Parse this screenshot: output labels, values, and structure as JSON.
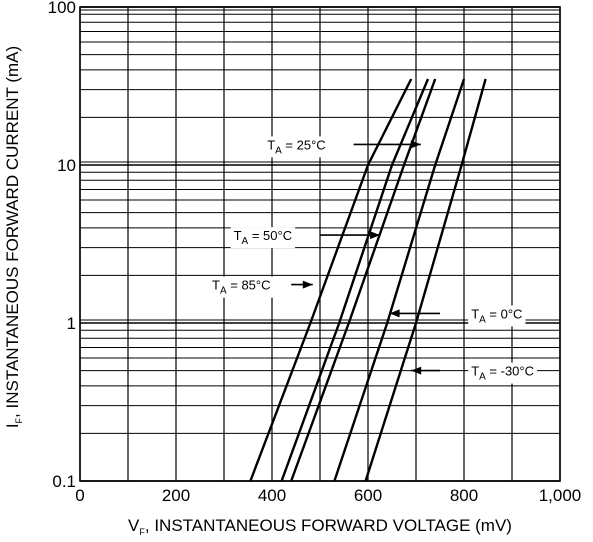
{
  "chart_data": {
    "type": "line",
    "xlabel": {
      "main": "V",
      "sub": "F",
      "rest": ", INSTANTANEOUS FORWARD VOLTAGE (mV)"
    },
    "ylabel": {
      "main": "I",
      "sub": "F",
      "rest": ", INSTANTANEOUS FORWARD CURRENT (mA)"
    },
    "xlim": [
      0,
      1000
    ],
    "ylim": [
      0.1,
      100
    ],
    "yscale": "log",
    "grid": true,
    "x_tick_values": [
      0,
      200,
      400,
      600,
      800,
      1000
    ],
    "x_tick_labels": [
      "0",
      "200",
      "400",
      "600",
      "800",
      "1,000"
    ],
    "y_tick_values": [
      0.1,
      1,
      10,
      100
    ],
    "y_tick_labels": [
      "0.1",
      "1",
      "10",
      "100"
    ],
    "series": [
      {
        "name": "T_A = 85°C",
        "points": [
          [
            355,
            0.1
          ],
          [
            480,
            1.0
          ],
          [
            600,
            10.0
          ],
          [
            690,
            35.0
          ]
        ]
      },
      {
        "name": "T_A = 50°C",
        "points": [
          [
            420,
            0.1
          ],
          [
            540,
            1.0
          ],
          [
            650,
            10.0
          ],
          [
            725,
            35.0
          ]
        ]
      },
      {
        "name": "T_A = 25°C",
        "points": [
          [
            440,
            0.1
          ],
          [
            560,
            1.0
          ],
          [
            675,
            10.0
          ],
          [
            740,
            35.0
          ]
        ]
      },
      {
        "name": "T_A = 0°C",
        "points": [
          [
            530,
            0.1
          ],
          [
            640,
            1.0
          ],
          [
            740,
            10.0
          ],
          [
            800,
            35.0
          ]
        ]
      },
      {
        "name": "T_A = -30°C",
        "points": [
          [
            595,
            0.1
          ],
          [
            700,
            1.0
          ],
          [
            795,
            10.0
          ],
          [
            845,
            35.0
          ]
        ]
      }
    ],
    "annotations": [
      {
        "main": "T",
        "sub": "A",
        "rest": " = 25°C",
        "label_at": [
          390,
          13.5
        ],
        "line_from": [
          570,
          13.5
        ],
        "arrow_to": [
          710,
          13.5
        ]
      },
      {
        "main": "T",
        "sub": "A",
        "rest": " = 50°C",
        "label_at": [
          320,
          3.6
        ],
        "line_from": [
          500,
          3.6
        ],
        "arrow_to": [
          625,
          3.6
        ]
      },
      {
        "main": "T",
        "sub": "A",
        "rest": " = 85°C",
        "label_at": [
          275,
          1.75
        ],
        "line_from": [
          440,
          1.75
        ],
        "arrow_to": [
          485,
          1.75
        ]
      },
      {
        "main": "T",
        "sub": "A",
        "rest": " = 0°C",
        "label_at": [
          815,
          1.15
        ],
        "line_from": [
          750,
          1.15
        ],
        "arrow_to": [
          645,
          1.15
        ]
      },
      {
        "main": "T",
        "sub": "A",
        "rest": " = -30°C",
        "label_at": [
          815,
          0.5
        ],
        "line_from": [
          750,
          0.5
        ],
        "arrow_to": [
          690,
          0.5
        ]
      }
    ]
  }
}
